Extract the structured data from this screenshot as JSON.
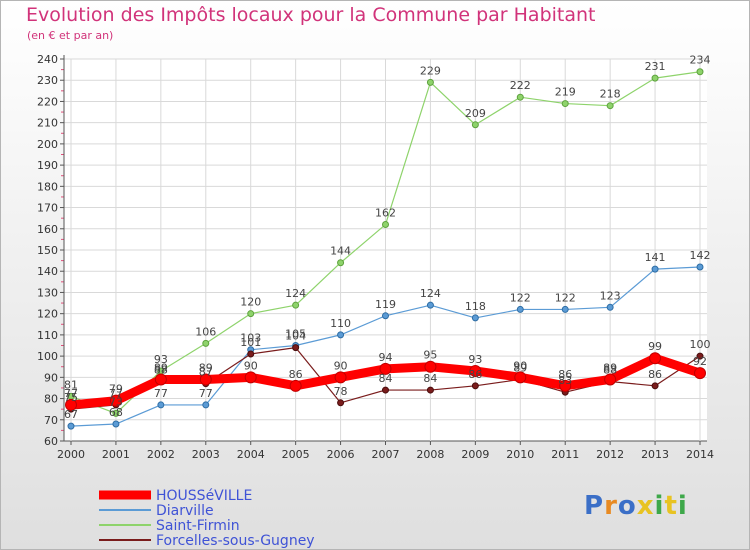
{
  "title": "Evolution des Impôts locaux pour la Commune par Habitant",
  "subtitle": "(en € et par an)",
  "logo": {
    "text": "Proxiti",
    "colors": [
      "#3b6fc7",
      "#e88a22",
      "#3b6fc7",
      "#e8c322",
      "#3ea84a",
      "#e8c322",
      "#3ea84a"
    ]
  },
  "chart_data": {
    "type": "line",
    "title": "Evolution des Impôts locaux pour la Commune par Habitant",
    "subtitle": "(en € et par an)",
    "xlabel": "",
    "ylabel": "",
    "x": [
      "2000",
      "2001",
      "2002",
      "2003",
      "2004",
      "2005",
      "2006",
      "2007",
      "2008",
      "2009",
      "2010",
      "2011",
      "2012",
      "2013",
      "2014"
    ],
    "ylim": [
      60,
      240
    ],
    "yticks": [
      60,
      70,
      80,
      90,
      100,
      110,
      120,
      130,
      140,
      150,
      160,
      170,
      180,
      190,
      200,
      210,
      220,
      230,
      240
    ],
    "grid": true,
    "legend_position": "bottom-left",
    "series": [
      {
        "name": "HOUSSéVILLE",
        "color": "#ff0000",
        "values": [
          77,
          79,
          89,
          89,
          90,
          86,
          90,
          94,
          95,
          93,
          90,
          86,
          89,
          99,
          92
        ]
      },
      {
        "name": "Diarville",
        "color": "#5b9bd5",
        "values": [
          67,
          68,
          77,
          77,
          103,
          105,
          110,
          119,
          124,
          118,
          122,
          122,
          123,
          141,
          142
        ]
      },
      {
        "name": "Saint-Firmin",
        "color": "#8ed36b",
        "values": [
          81,
          73,
          93,
          106,
          120,
          124,
          144,
          162,
          229,
          209,
          222,
          219,
          218,
          231,
          234
        ]
      },
      {
        "name": "Forcelles-sous-Gugney",
        "color": "#7a1c1c",
        "values": [
          75,
          77,
          88,
          87,
          101,
          104,
          78,
          84,
          84,
          86,
          89,
          83,
          88,
          86,
          100
        ]
      }
    ]
  }
}
